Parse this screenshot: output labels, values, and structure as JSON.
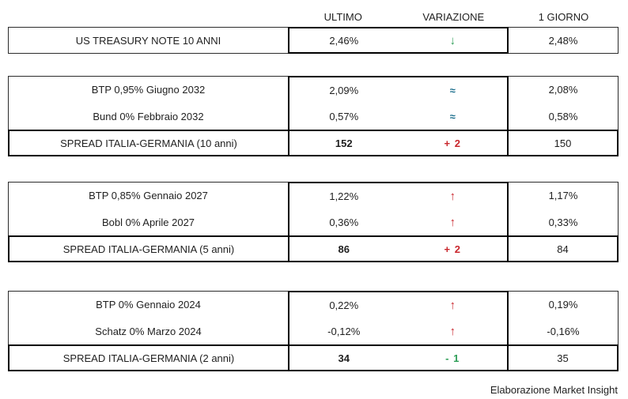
{
  "colors": {
    "up_red": "#c9262c",
    "down_green": "#2e9e57",
    "flat_teal": "#1b6e8c",
    "border_thin": "#2b2b2b",
    "border_thick": "#000000",
    "background": "#ffffff",
    "text": "#1f1f1f"
  },
  "table": {
    "headers": {
      "ultimo": "ULTIMO",
      "variazione": "VARIAZIONE",
      "giorno": "1 GIORNO"
    },
    "sections": [
      {
        "rows": [
          {
            "label": "US TREASURY NOTE 10 ANNI",
            "ultimo": "2,46%",
            "variazione": "↓",
            "dir": "down",
            "giorno": "2,48%"
          }
        ]
      },
      {
        "rows": [
          {
            "label": "BTP 0,95% Giugno 2032",
            "ultimo": "2,09%",
            "variazione": "≈",
            "dir": "flat",
            "giorno": "2,08%"
          },
          {
            "label": "Bund 0% Febbraio 2032",
            "ultimo": "0,57%",
            "variazione": "≈",
            "dir": "flat",
            "giorno": "0,58%"
          }
        ],
        "spread": {
          "label": "SPREAD ITALIA-GERMANIA (10 anni)",
          "ultimo": "152",
          "variazione": "+ 2",
          "dir": "up",
          "giorno": "150"
        }
      },
      {
        "rows": [
          {
            "label": "BTP 0,85% Gennaio 2027",
            "ultimo": "1,22%",
            "variazione": "↑",
            "dir": "up",
            "giorno": "1,17%"
          },
          {
            "label": "Bobl 0% Aprile 2027",
            "ultimo": "0,36%",
            "variazione": "↑",
            "dir": "up",
            "giorno": "0,33%"
          }
        ],
        "spread": {
          "label": "SPREAD ITALIA-GERMANIA (5 anni)",
          "ultimo": "86",
          "variazione": "+ 2",
          "dir": "up",
          "giorno": "84"
        }
      },
      {
        "rows": [
          {
            "label": "BTP 0% Gennaio 2024",
            "ultimo": "0,22%",
            "variazione": "↑",
            "dir": "up",
            "giorno": "0,19%"
          },
          {
            "label": "Schatz 0% Marzo 2024",
            "ultimo": "-0,12%",
            "variazione": "↑",
            "dir": "up",
            "giorno": "-0,16%"
          }
        ],
        "spread": {
          "label": "SPREAD ITALIA-GERMANIA (2 anni)",
          "ultimo": "34",
          "variazione": "- 1",
          "dir": "down",
          "giorno": "35"
        }
      }
    ]
  },
  "footer": {
    "credit": "Elaborazione Market Insight"
  },
  "chart_data": {
    "type": "table",
    "columns": [
      "",
      "ULTIMO",
      "VARIAZIONE",
      "1 GIORNO"
    ],
    "rows": [
      [
        "US TREASURY NOTE 10 ANNI",
        "2,46%",
        "↓",
        "2,48%"
      ],
      [
        "BTP 0,95% Giugno 2032",
        "2,09%",
        "≈",
        "2,08%"
      ],
      [
        "Bund 0% Febbraio 2032",
        "0,57%",
        "≈",
        "0,58%"
      ],
      [
        "SPREAD ITALIA-GERMANIA (10 anni)",
        "152",
        "+ 2",
        "150"
      ],
      [
        "BTP 0,85% Gennaio 2027",
        "1,22%",
        "↑",
        "1,17%"
      ],
      [
        "Bobl 0% Aprile 2027",
        "0,36%",
        "↑",
        "0,33%"
      ],
      [
        "SPREAD ITALIA-GERMANIA (5 anni)",
        "86",
        "+ 2",
        "84"
      ],
      [
        "BTP 0% Gennaio 2024",
        "0,22%",
        "↑",
        "0,19%"
      ],
      [
        "Schatz 0% Marzo 2024",
        "-0,12%",
        "↑",
        "-0,16%"
      ],
      [
        "SPREAD ITALIA-GERMANIA (2 anni)",
        "34",
        "- 1",
        "35"
      ]
    ],
    "annotations": [
      "Elaborazione Market Insight"
    ]
  }
}
